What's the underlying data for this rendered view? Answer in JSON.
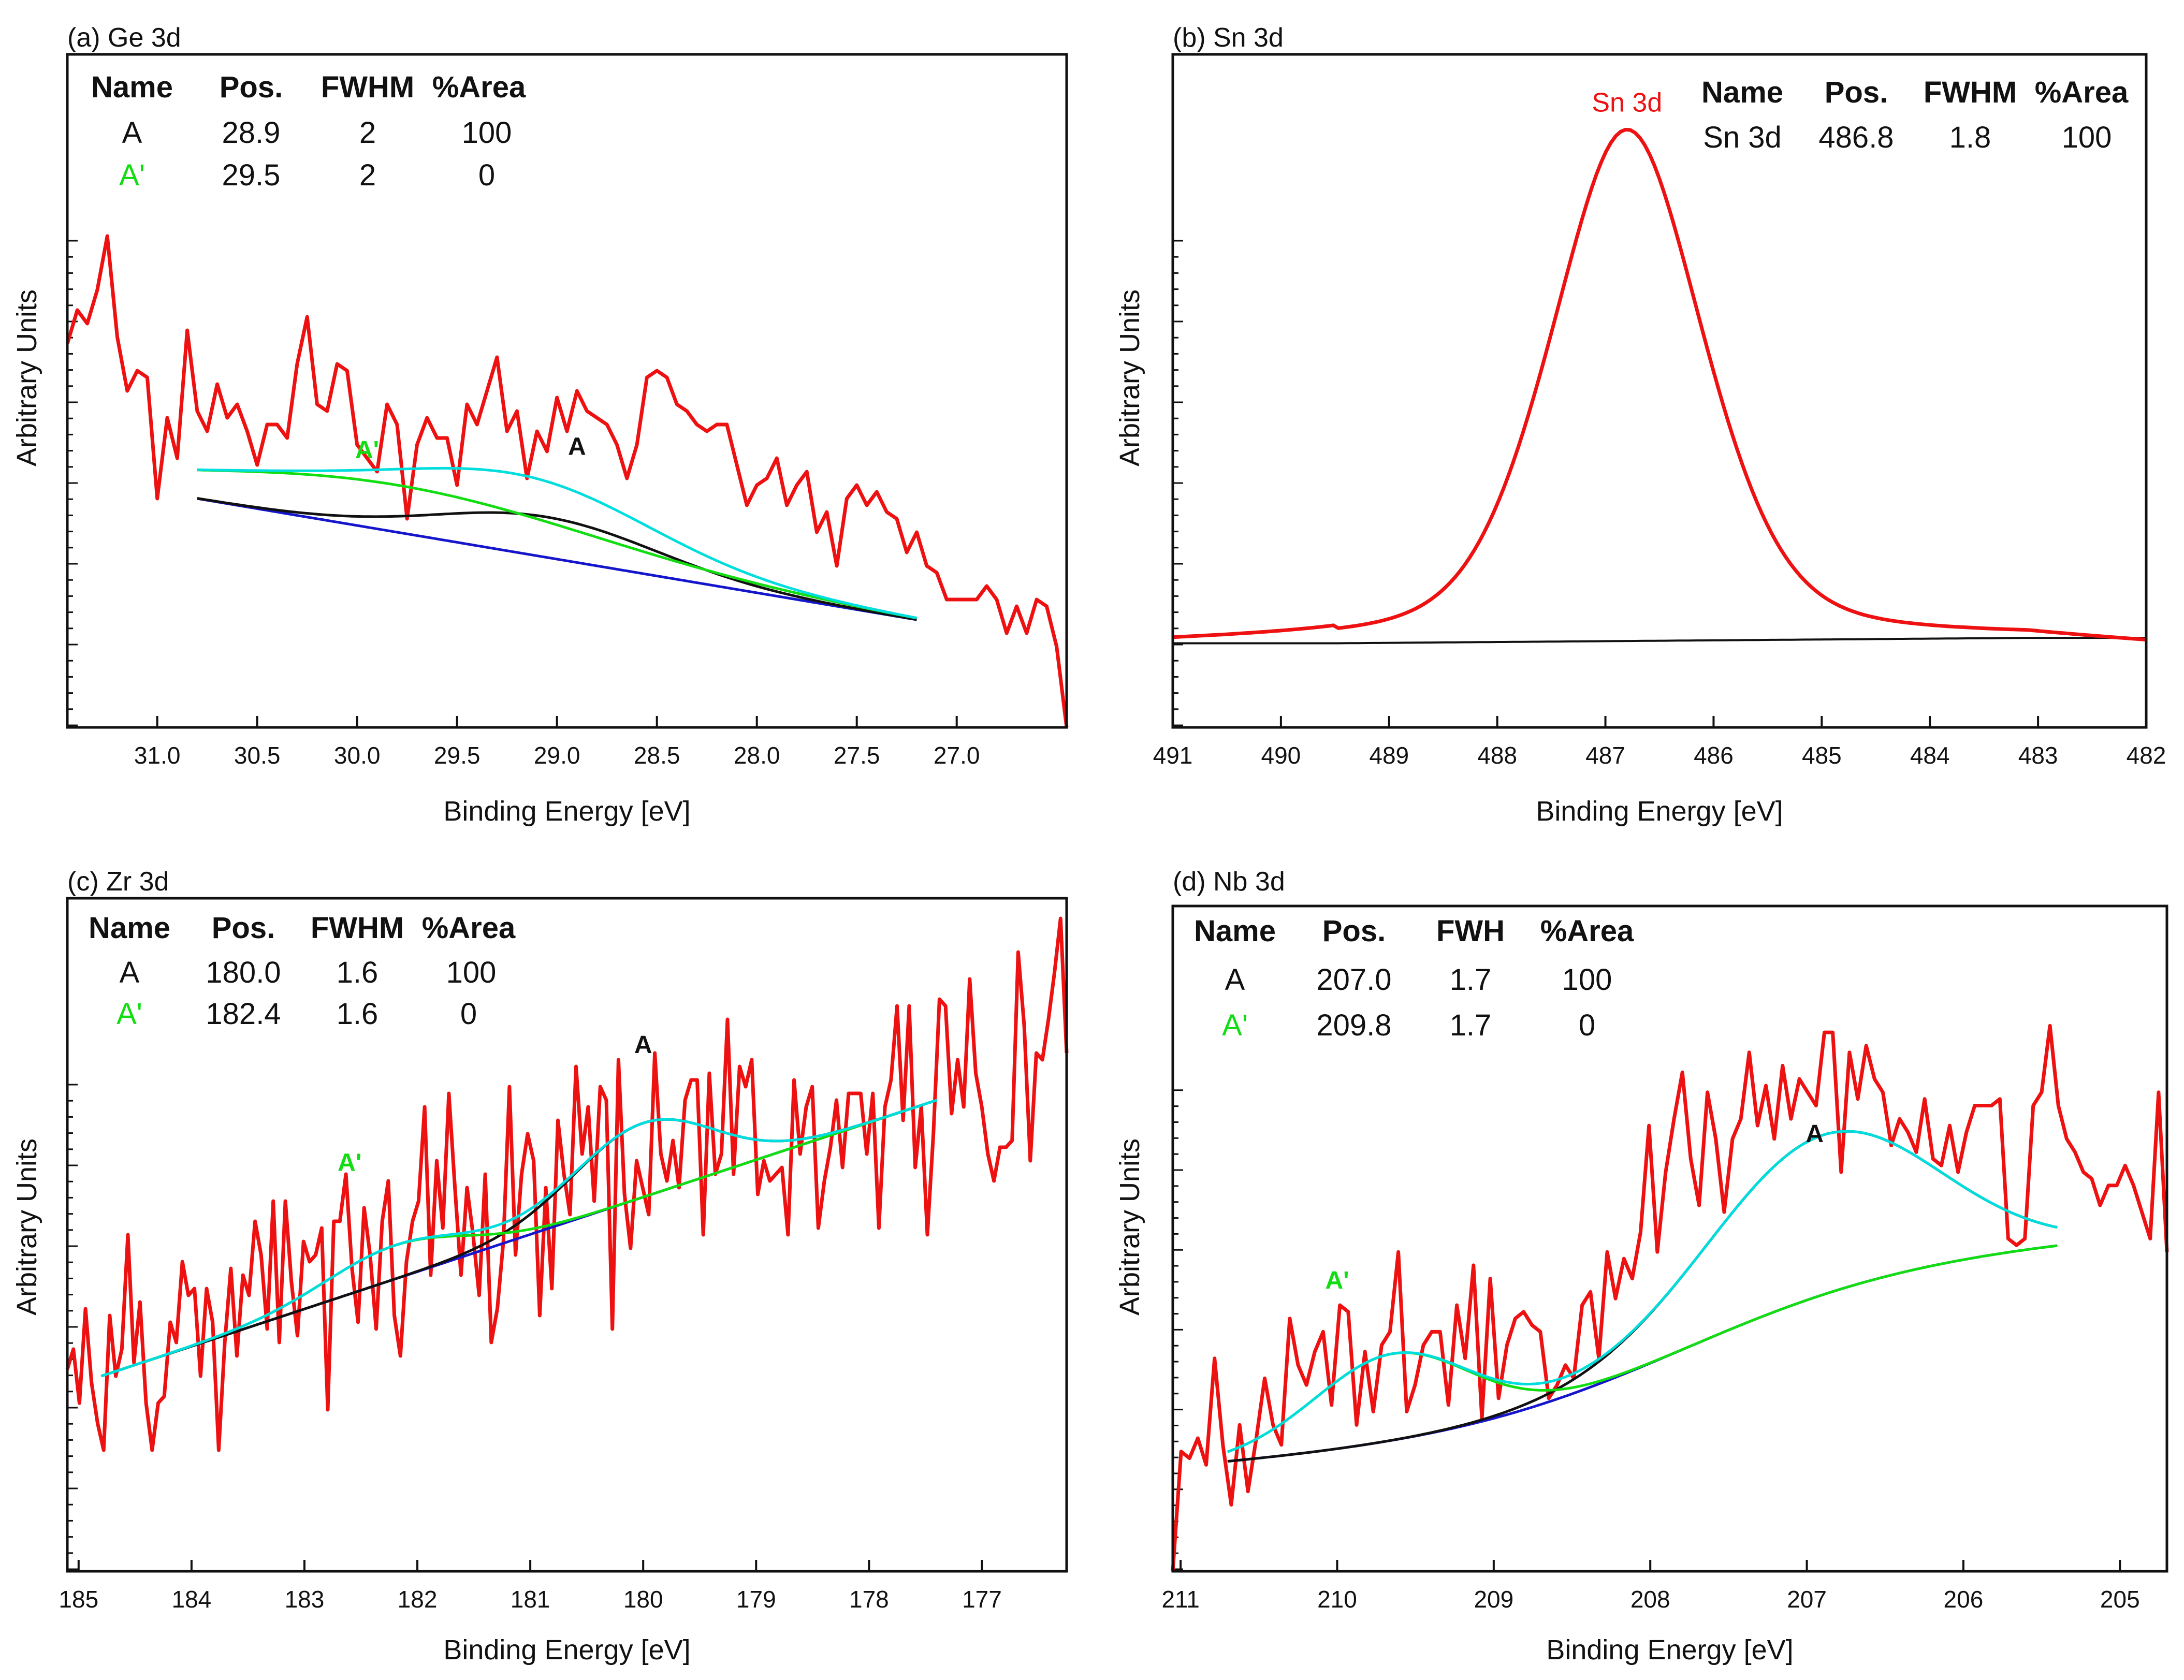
{
  "figure": {
    "colors": {
      "data": "#ee1111",
      "fit": "#00dddd",
      "peakA": "#111111",
      "peakA2": "#11dd11",
      "background": "#1515cc",
      "text": "#111111"
    }
  },
  "chart_data": [
    {
      "type": "line",
      "title": "(a) Ge 3d",
      "xlabel": "Binding Energy [eV]",
      "ylabel": "Arbitrary Units",
      "xlim": [
        31.45,
        26.45
      ],
      "ylim": [
        0,
        100
      ],
      "xticks": [
        31.0,
        30.5,
        30.0,
        29.5,
        29.0,
        28.5,
        28.0,
        27.5,
        27.0
      ],
      "xtick_labels": [
        "31.0",
        "30.5",
        "30.0",
        "29.5",
        "29.0",
        "28.5",
        "28.0",
        "27.5",
        "27.0"
      ],
      "table": {
        "headers": [
          "Name",
          "Pos.",
          "FWHM",
          "%Area"
        ],
        "rows": [
          {
            "name": "A",
            "pos": "28.9",
            "fwhm": "2",
            "area": "100",
            "color": "#111111"
          },
          {
            "name": "A'",
            "pos": "29.5",
            "fwhm": "2",
            "area": "0",
            "color": "#11dd11"
          }
        ]
      },
      "peak_labels": [
        {
          "text": "A'",
          "x": 29.95,
          "y": 40,
          "color": "#11dd11"
        },
        {
          "text": "A",
          "x": 28.9,
          "y": 40.5,
          "color": "#111111"
        }
      ],
      "background": {
        "x1": 30.8,
        "y1": 34,
        "x2": 27.2,
        "y2": 16
      },
      "components": [
        {
          "name": "A",
          "kind": "gauss",
          "center": 29.05,
          "amp": 6,
          "sigma": 0.55,
          "color": "#111111"
        },
        {
          "name": "A'",
          "kind": "gauss",
          "center": 29.8,
          "amp": 7,
          "sigma": 1.0,
          "color": "#11dd11"
        }
      ],
      "fit_range": [
        30.8,
        27.2
      ],
      "raw": {
        "x_start": 31.45,
        "x_end": 26.45,
        "y": [
          57,
          62,
          60,
          65,
          73,
          58,
          50,
          53,
          52,
          34,
          46,
          40,
          59,
          47,
          44,
          51,
          46,
          48,
          44,
          39,
          45,
          45,
          43,
          54,
          61,
          48,
          47,
          54,
          53,
          42,
          40,
          38,
          48,
          45,
          31,
          42,
          46,
          43,
          43,
          36,
          48,
          45,
          50,
          55,
          44,
          47,
          37,
          44,
          41,
          49,
          44,
          50,
          47,
          46,
          45,
          42,
          37,
          42,
          52,
          53,
          52,
          48,
          47,
          45,
          44,
          45,
          45,
          39,
          33,
          36,
          37,
          40,
          33,
          36,
          38,
          29,
          32,
          24,
          34,
          36,
          33,
          35,
          32,
          31,
          26,
          29,
          24,
          23,
          19,
          19,
          19,
          19,
          21,
          19,
          14,
          18,
          14,
          19,
          18,
          12,
          0
        ]
      }
    },
    {
      "type": "line",
      "title": "(b) Sn 3d",
      "xlabel": "Binding Energy [eV]",
      "ylabel": "Arbitrary Units",
      "xlim": [
        491,
        482
      ],
      "ylim": [
        0,
        100
      ],
      "xticks": [
        491,
        490,
        489,
        488,
        487,
        486,
        485,
        484,
        483,
        482
      ],
      "xtick_labels": [
        "491",
        "490",
        "489",
        "488",
        "487",
        "486",
        "485",
        "484",
        "483",
        "482"
      ],
      "table": {
        "headers": [
          "Name",
          "Pos.",
          "FWHM",
          "%Area"
        ],
        "rows": [
          {
            "name": "Sn 3d",
            "pos": "486.8",
            "fwhm": "1.8",
            "area": "100",
            "color": "#111111"
          }
        ]
      },
      "peak_labels": [
        {
          "text": "Sn 3d",
          "x": 486.8,
          "y": 91.5,
          "color": "#ee1111"
        }
      ],
      "background": {
        "x1": 489.5,
        "y1": 12.5,
        "x2": 483.1,
        "y2": 13.3
      },
      "components": [
        {
          "name": "Sn 3d",
          "kind": "voigt",
          "center": 486.8,
          "amp": 76,
          "sigma": 0.72,
          "gamma": 0.8,
          "eta": 0.35,
          "color": "#ee1111"
        }
      ],
      "fit_range": [
        491,
        482
      ],
      "raw": null
    },
    {
      "type": "line",
      "title": "(c) Zr 3d",
      "xlabel": "Binding Energy [eV]",
      "ylabel": "Arbitrary Units",
      "xlim": [
        185.1,
        176.25
      ],
      "ylim": [
        0,
        100
      ],
      "xticks": [
        185,
        184,
        183,
        182,
        181,
        180,
        179,
        178,
        177
      ],
      "xtick_labels": [
        "185",
        "184",
        "183",
        "182",
        "181",
        "180",
        "179",
        "178",
        "177"
      ],
      "table": {
        "headers": [
          "Name",
          "Pos.",
          "FWHM",
          "%Area"
        ],
        "rows": [
          {
            "name": "A",
            "pos": "180.0",
            "fwhm": "1.6",
            "area": "100",
            "color": "#111111"
          },
          {
            "name": "A'",
            "pos": "182.4",
            "fwhm": "1.6",
            "area": "0",
            "color": "#11dd11"
          }
        ]
      },
      "peak_labels": [
        {
          "text": "A'",
          "x": 182.6,
          "y": 59.5,
          "color": "#11dd11"
        },
        {
          "text": "A",
          "x": 180.0,
          "y": 77,
          "color": "#111111"
        }
      ],
      "background": {
        "x1": 184.8,
        "y1": 29,
        "x2": 177.4,
        "y2": 70
      },
      "components": [
        {
          "name": "A",
          "kind": "gauss",
          "center": 180.0,
          "amp": 11,
          "sigma": 0.62,
          "color": "#111111"
        },
        {
          "name": "A'",
          "kind": "gauss",
          "center": 182.2,
          "amp": 5,
          "sigma": 0.62,
          "color": "#11dd11"
        }
      ],
      "fit_range": [
        184.8,
        177.4
      ],
      "raw": {
        "x_start": 185.1,
        "x_end": 176.25,
        "y": [
          30,
          33,
          25,
          39,
          28,
          22,
          18,
          38,
          29,
          33,
          50,
          31,
          40,
          25,
          18,
          25,
          26,
          37,
          34,
          46,
          41,
          42,
          29,
          42,
          37,
          18,
          34,
          45,
          32,
          44,
          41,
          52,
          47,
          36,
          55,
          34,
          55,
          43,
          35,
          49,
          46,
          47,
          51,
          24,
          52,
          52,
          59,
          45,
          37,
          54,
          47,
          36,
          52,
          58,
          38,
          32,
          46,
          52,
          55,
          69,
          44,
          61,
          51,
          71,
          57,
          44,
          57,
          50,
          41,
          59,
          34,
          39,
          49,
          72,
          47,
          59,
          65,
          61,
          38,
          57,
          42,
          67,
          59,
          53,
          75,
          62,
          69,
          55,
          72,
          70,
          36,
          76,
          56,
          48,
          61,
          57,
          53,
          77,
          62,
          58,
          64,
          57,
          70,
          73,
          73,
          50,
          74,
          59,
          62,
          82,
          59,
          75,
          72,
          76,
          56,
          61,
          58,
          59,
          60,
          50,
          73,
          62,
          69,
          72,
          51,
          58,
          63,
          70,
          60,
          71,
          71,
          71,
          62,
          71,
          51,
          69,
          73,
          84,
          67,
          84,
          60,
          69,
          50,
          65,
          85,
          84,
          68,
          76,
          69,
          88,
          74,
          69,
          62,
          58,
          63,
          63,
          64,
          92,
          81,
          61,
          77,
          76,
          82,
          89,
          97,
          77
        ]
      }
    },
    {
      "type": "line",
      "title": "(d) Nb 3d",
      "xlabel": "Binding Energy [eV]",
      "ylabel": "Arbitrary Units",
      "xlim": [
        211.05,
        204.7
      ],
      "ylim": [
        0,
        100
      ],
      "xticks": [
        211,
        210,
        209,
        208,
        207,
        206,
        205
      ],
      "xtick_labels": [
        "211",
        "210",
        "209",
        "208",
        "207",
        "206",
        "205"
      ],
      "table": {
        "headers": [
          "Name",
          "Pos.",
          "FWH",
          "%Area"
        ],
        "rows": [
          {
            "name": "A",
            "pos": "207.0",
            "fwhm": "1.7",
            "area": "100",
            "color": "#111111"
          },
          {
            "name": "A'",
            "pos": "209.8",
            "fwhm": "1.7",
            "area": "0",
            "color": "#11dd11"
          }
        ]
      },
      "peak_labels": [
        {
          "text": "A'",
          "x": 210.0,
          "y": 42.5,
          "color": "#11dd11"
        },
        {
          "text": "A",
          "x": 206.95,
          "y": 64.5,
          "color": "#111111"
        }
      ],
      "background": {
        "type": "shirley",
        "x1": 210.7,
        "y1": 16,
        "x2": 205.4,
        "y2": 50
      },
      "components": [
        {
          "name": "A",
          "kind": "gauss",
          "center": 206.9,
          "amp": 24,
          "sigma": 0.72,
          "color": "#111111"
        },
        {
          "name": "A'",
          "kind": "gauss",
          "center": 209.65,
          "amp": 13,
          "sigma": 0.5,
          "color": "#11dd11"
        }
      ],
      "fit_range": [
        210.7,
        205.4
      ],
      "raw": {
        "x_start": 211.05,
        "x_end": 204.7,
        "y": [
          0,
          18,
          17,
          20,
          16,
          32,
          19,
          10,
          22,
          12,
          20,
          29,
          22,
          19,
          38,
          31,
          28,
          33,
          36,
          25,
          40,
          39,
          22,
          33,
          24,
          34,
          36,
          48,
          24,
          28,
          34,
          36,
          36,
          25,
          40,
          32,
          46,
          23,
          44,
          26,
          34,
          38,
          39,
          37,
          36,
          26,
          28,
          31,
          29,
          40,
          42,
          32,
          48,
          41,
          47,
          44,
          51,
          67,
          48,
          60,
          68,
          75,
          62,
          55,
          72,
          65,
          54,
          65,
          68,
          78,
          67,
          73,
          65,
          76,
          68,
          74,
          72,
          70,
          81,
          81,
          60,
          78,
          71,
          79,
          74,
          72,
          64,
          68,
          66,
          63,
          71,
          62,
          61,
          67,
          60,
          66,
          70,
          70,
          70,
          71,
          50,
          49,
          50,
          70,
          72,
          82,
          70,
          65,
          63,
          60,
          59,
          55,
          58,
          58,
          61,
          58,
          54,
          50,
          72,
          48
        ]
      }
    }
  ]
}
